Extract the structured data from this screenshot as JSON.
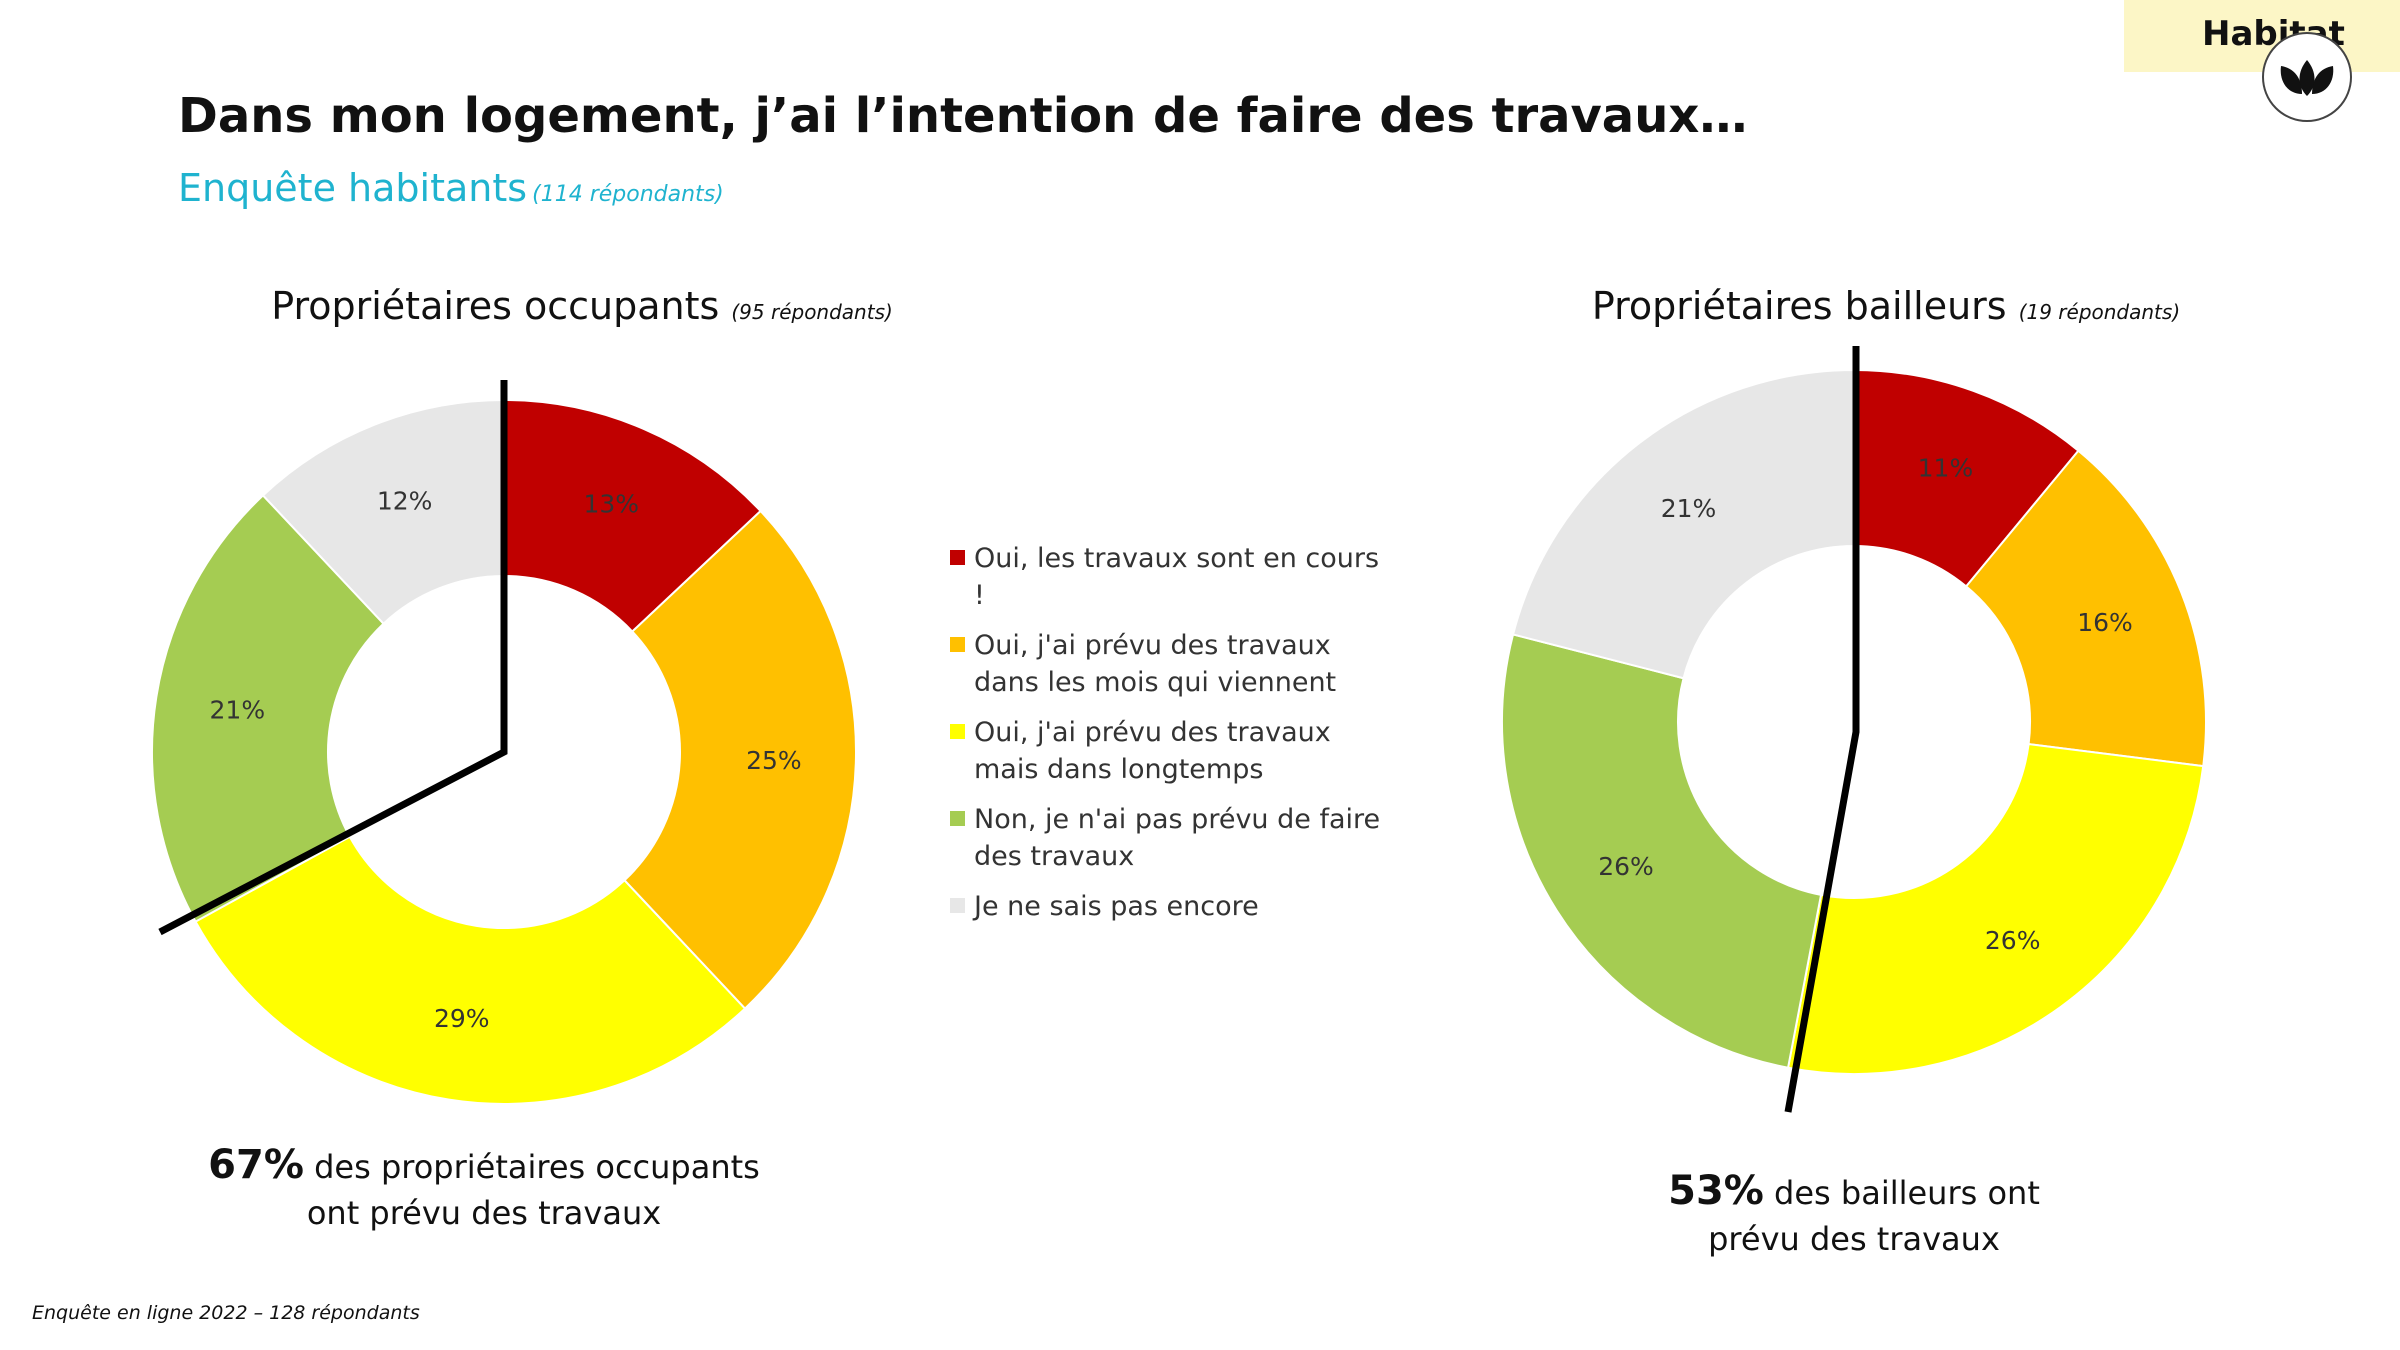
{
  "header": {
    "badge": "Habitat",
    "title": "Dans mon logement, j’ai l’intention de faire des travaux…",
    "subtitle": "Enquête habitants",
    "subtitle_note": "(114 répondants)"
  },
  "colors": {
    "en_cours": "#c00000",
    "mois_qui_viennent": "#ffc000",
    "longtemps": "#ffff00",
    "non": "#a5cc52",
    "ne_sais_pas": "#e7e7e7",
    "subtitle": "#1fb3cf"
  },
  "chart_data": [
    {
      "type": "pie",
      "title": "Propriétaires occupants",
      "title_note": "(95 répondants)",
      "categories": [
        "Oui,  les travaux sont en cours !",
        "Oui, j'ai prévu des travaux dans les mois qui viennent",
        "Oui, j'ai prévu des travaux mais dans longtemps",
        "Non, je n'ai pas prévu de faire des travaux",
        "Je ne sais pas encore"
      ],
      "values": [
        13,
        25,
        29,
        21,
        12
      ],
      "labels": [
        "13%",
        "25%",
        "29%",
        "21%",
        "12%"
      ],
      "legend": "center"
    },
    {
      "type": "pie",
      "title": "Propriétaires bailleurs",
      "title_note": "(19 répondants)",
      "categories": [
        "Oui,  les travaux sont en cours !",
        "Oui, j'ai prévu des travaux dans les mois qui viennent",
        "Oui, j'ai prévu des travaux mais dans longtemps",
        "Non, je n'ai pas prévu de faire des travaux",
        "Je ne sais pas encore"
      ],
      "values": [
        11,
        16,
        26,
        26,
        21
      ],
      "labels": [
        "11%",
        "16%",
        "26%",
        "26%",
        "21%"
      ],
      "legend": "center"
    }
  ],
  "legend": [
    {
      "label": "Oui,  les travaux sont en cours !"
    },
    {
      "label": "Oui, j'ai prévu des travaux dans les mois qui viennent"
    },
    {
      "label": "Oui, j'ai prévu des travaux mais dans longtemps"
    },
    {
      "label": "Non, je n'ai pas prévu de faire des travaux"
    },
    {
      "label": "Je ne sais pas encore"
    }
  ],
  "summaries": [
    {
      "value": "67%",
      "line1": "des propriétaires occupants",
      "line2": "ont prévu des travaux"
    },
    {
      "value": "53%",
      "line1": "des bailleurs ont",
      "line2": "prévu des travaux"
    }
  ],
  "footnote": "Enquête en ligne 2022 – 128 répondants"
}
